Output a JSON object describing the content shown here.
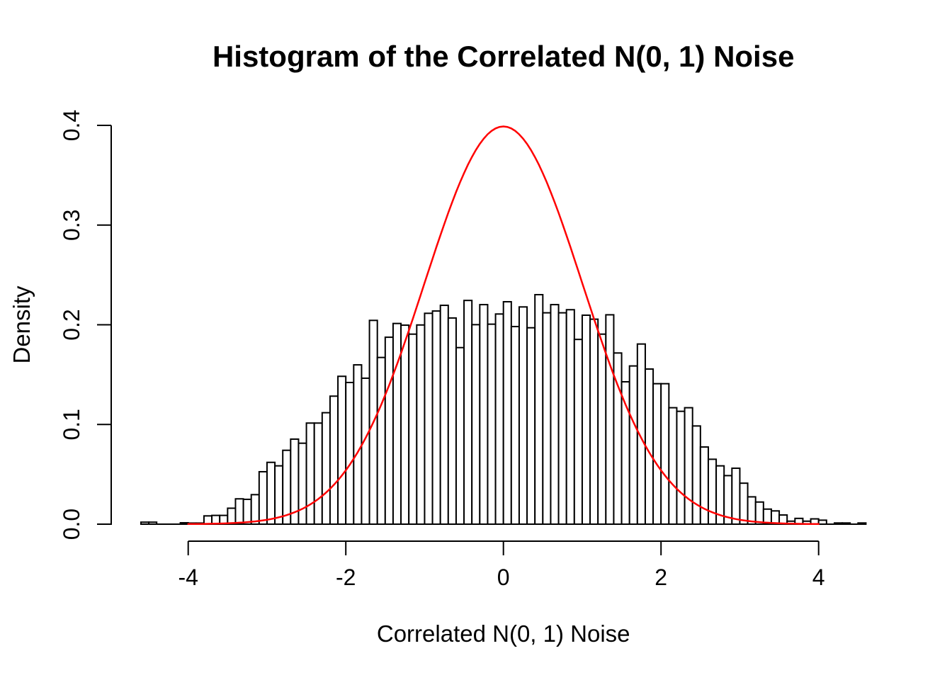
{
  "chart_data": {
    "type": "bar",
    "variant": "histogram-with-density-curve",
    "title": "Histogram of the Correlated N(0, 1) Noise",
    "xlabel": "Correlated N(0, 1) Noise",
    "ylabel": "Density",
    "x_ticks": [
      -4,
      -2,
      0,
      2,
      4
    ],
    "x_tick_labels": [
      "-4",
      "-2",
      "0",
      "2",
      "4"
    ],
    "y_ticks": [
      0.0,
      0.1,
      0.2,
      0.3,
      0.4
    ],
    "y_tick_labels": [
      "0.0",
      "0.1",
      "0.2",
      "0.3",
      "0.4"
    ],
    "xlim": [
      -4.6,
      4.6
    ],
    "ylim": [
      0,
      0.4
    ],
    "grid": false,
    "legend": "none",
    "histogram": {
      "bin_start": -4.6,
      "bin_width": 0.1,
      "bar_fill": "#ffffff",
      "bar_stroke": "#000000",
      "densities": [
        0.002,
        0.002,
        0,
        0,
        0,
        0.0014,
        0.0011,
        0.0011,
        0.0083,
        0.0088,
        0.0088,
        0.016,
        0.0254,
        0.0249,
        0.0296,
        0.0526,
        0.062,
        0.0585,
        0.0741,
        0.0853,
        0.0812,
        0.1014,
        0.1014,
        0.1118,
        0.1284,
        0.1483,
        0.1421,
        0.1598,
        0.1464,
        0.2044,
        0.1672,
        0.1875,
        0.2013,
        0.1996,
        0.1906,
        0.1998,
        0.2115,
        0.2138,
        0.2195,
        0.2068,
        0.1771,
        0.2244,
        0.2001,
        0.2202,
        0.2006,
        0.2108,
        0.2231,
        0.1982,
        0.2179,
        0.197,
        0.2302,
        0.212,
        0.2202,
        0.212,
        0.2151,
        0.1853,
        0.2096,
        0.2056,
        0.1906,
        0.21,
        0.1717,
        0.1428,
        0.1587,
        0.1807,
        0.1556,
        0.1409,
        0.1409,
        0.1168,
        0.1132,
        0.1168,
        0.0985,
        0.0774,
        0.0651,
        0.0585,
        0.0487,
        0.0561,
        0.0411,
        0.0274,
        0.0222,
        0.0151,
        0.0133,
        0.0092,
        0.003,
        0.0058,
        0.003,
        0.0053,
        0.004,
        0,
        0.0012,
        0.0012,
        0,
        0.0012
      ]
    },
    "curve": {
      "name": "standard-normal-density",
      "distribution": "N(0, 1)",
      "mean": 0,
      "sd": 1,
      "x_range": [
        -4,
        4
      ],
      "color": "#ff0000",
      "peak_density": 0.3989
    },
    "axis_color": "#000000",
    "background_color": "#ffffff"
  }
}
